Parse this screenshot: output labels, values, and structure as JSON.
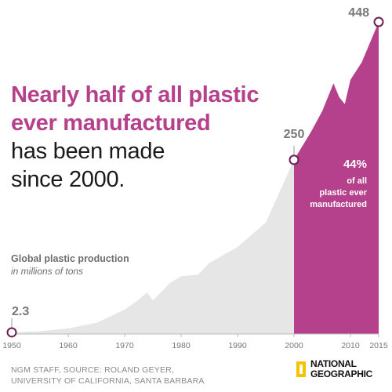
{
  "headline": {
    "highlight_line1": "Nearly half of all plastic",
    "highlight_line2": "ever manufactured",
    "line3": "has been made",
    "line4": "since 2000."
  },
  "subtitle": {
    "line1": "Global plastic production",
    "line2": "in millions of tons"
  },
  "source": {
    "line1": "NGM STAFF, SOURCE: ROLAND GEYER,",
    "line2": "UNIVERSITY OF CALIFORNIA, SANTA BARBARA"
  },
  "logo": {
    "line1": "NATIONAL",
    "line2": "GEOGRAPHIC"
  },
  "colors": {
    "highlight": "#b5418c",
    "area_pre2000": "#e6e6e6",
    "text_dark": "#1a1a1a",
    "label_gray": "#777777"
  },
  "chart_data": {
    "type": "area",
    "title": "Nearly half of all plastic ever manufactured has been made since 2000.",
    "subtitle": "Global plastic production, in millions of tons",
    "xlabel": "",
    "ylabel": "",
    "xlim": [
      1950,
      2015
    ],
    "ylim": [
      0,
      448
    ],
    "x_ticks": [
      1950,
      1960,
      1970,
      1980,
      1990,
      2000,
      2010,
      2015
    ],
    "grid": false,
    "series": [
      {
        "x": [
          1950,
          1955,
          1960,
          1965,
          1970,
          1972,
          1974,
          1975,
          1978,
          1980,
          1983,
          1985,
          1990,
          1995,
          2000,
          2003,
          2005,
          2007,
          2008,
          2009,
          2010,
          2012,
          2015
        ],
        "values": [
          2.3,
          4,
          8,
          16,
          35,
          46,
          60,
          48,
          73,
          83,
          85,
          102,
          125,
          160,
          250,
          290,
          320,
          360,
          340,
          330,
          365,
          390,
          448
        ]
      }
    ],
    "highlight_from": 2000,
    "point_labels": [
      {
        "x": 1950,
        "value": 2.3,
        "label": "2.3"
      },
      {
        "x": 2000,
        "value": 250,
        "label": "250"
      },
      {
        "x": 2015,
        "value": 448,
        "label": "448"
      }
    ],
    "annotation": {
      "value": "44%",
      "line1": "of all",
      "line2": "plastic ever",
      "line3": "manufactured"
    }
  }
}
